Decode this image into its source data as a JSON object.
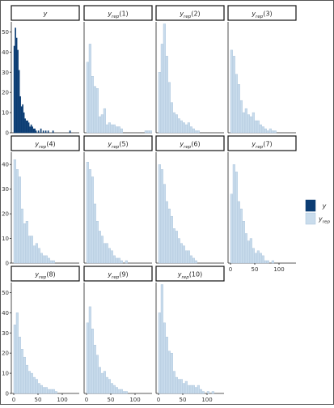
{
  "chart_data": {
    "type": "histogram-grid",
    "title": "",
    "xlabel": "",
    "ylabel": "",
    "colors": {
      "observed": "#0b3c73",
      "replicate": "#c9dcec",
      "replicate_edge": "#a7c1d9"
    },
    "legend": {
      "placement": "right",
      "entries": [
        {
          "key": "y",
          "label": "y",
          "sub": ""
        },
        {
          "key": "yrep",
          "label": "y",
          "sub": "rep"
        }
      ]
    },
    "bin_width": 5,
    "rows": [
      {
        "xlim": [
          -5,
          135
        ],
        "xticks": [],
        "ylim": [
          0,
          55
        ],
        "yticks": [
          "0",
          "10",
          "20",
          "30",
          "40",
          "50"
        ]
      },
      {
        "xlim": [
          -5,
          135
        ],
        "xticks": [],
        "ylim": [
          0,
          45
        ],
        "yticks": [
          "0",
          "10",
          "20",
          "30",
          "40"
        ]
      },
      {
        "xlim": [
          -5,
          135
        ],
        "xticks": [
          "0",
          "50",
          "100"
        ],
        "ylim": [
          0,
          55
        ],
        "yticks": [
          "0",
          "10",
          "20",
          "30",
          "40",
          "50"
        ]
      }
    ],
    "panels": [
      {
        "label": "y",
        "sub": "",
        "idx": "",
        "kind": "observed",
        "row": 0,
        "col": 0,
        "bin_starts": [
          0,
          2.5,
          5,
          7.5,
          10,
          12.5,
          15,
          17.5,
          20,
          22.5,
          25,
          27.5,
          30,
          32.5,
          35,
          37.5,
          40,
          42.5,
          45,
          50,
          55,
          60,
          65,
          70,
          80,
          115
        ],
        "values": [
          43,
          52,
          47,
          41,
          31,
          18,
          13,
          14,
          10,
          7,
          6,
          6,
          5,
          3,
          4,
          3,
          2,
          2,
          1,
          1,
          2,
          1,
          1,
          1,
          1,
          1
        ]
      },
      {
        "label": "y",
        "sub": "rep",
        "idx": "(1)",
        "kind": "replicate",
        "row": 0,
        "col": 1,
        "values": [
          35,
          44,
          28,
          23,
          22,
          8,
          9,
          12,
          4,
          5,
          4,
          4,
          3,
          3,
          2,
          0,
          0,
          0,
          0,
          0,
          0,
          0,
          0,
          0,
          1,
          1,
          1
        ]
      },
      {
        "label": "y",
        "sub": "rep",
        "idx": "(2)",
        "kind": "replicate",
        "row": 0,
        "col": 2,
        "values": [
          30,
          44,
          54,
          38,
          25,
          15,
          10,
          9,
          7,
          6,
          5,
          4,
          5,
          3,
          2,
          1,
          1,
          0,
          0,
          0,
          0,
          0,
          0,
          0,
          0,
          0,
          0
        ]
      },
      {
        "label": "y",
        "sub": "rep",
        "idx": "(3)",
        "kind": "replicate",
        "row": 0,
        "col": 3,
        "values": [
          41,
          38,
          29,
          24,
          16,
          10,
          12,
          9,
          8,
          10,
          6,
          6,
          4,
          3,
          2,
          1,
          2,
          1,
          1,
          0,
          0,
          0,
          0,
          0,
          0,
          0,
          0
        ]
      },
      {
        "label": "y",
        "sub": "rep",
        "idx": "(4)",
        "kind": "replicate",
        "row": 1,
        "col": 0,
        "values": [
          42,
          38,
          35,
          22,
          16,
          17,
          11,
          11,
          7,
          8,
          6,
          4,
          3,
          3,
          2,
          1,
          1,
          0,
          0,
          0,
          0,
          0,
          0,
          0,
          0,
          0,
          0
        ]
      },
      {
        "label": "y",
        "sub": "rep",
        "idx": "(5)",
        "kind": "replicate",
        "row": 1,
        "col": 1,
        "values": [
          41,
          38,
          35,
          24,
          17,
          13,
          11,
          8,
          8,
          6,
          5,
          3,
          2,
          2,
          1,
          0,
          1,
          0,
          0,
          0,
          0,
          0,
          0,
          0,
          0,
          0,
          0
        ]
      },
      {
        "label": "y",
        "sub": "rep",
        "idx": "(6)",
        "kind": "replicate",
        "row": 1,
        "col": 2,
        "values": [
          40,
          38,
          32,
          25,
          22,
          19,
          14,
          13,
          10,
          8,
          7,
          5,
          5,
          3,
          2,
          1,
          0,
          0,
          0,
          0,
          0,
          0,
          0,
          0,
          0,
          0,
          0
        ]
      },
      {
        "label": "y",
        "sub": "rep",
        "idx": "(7)",
        "kind": "replicate",
        "row": 1,
        "col": 3,
        "values": [
          28,
          40,
          37,
          25,
          22,
          17,
          12,
          9,
          10,
          6,
          4,
          5,
          4,
          3,
          1,
          1,
          0,
          1,
          0,
          0,
          0,
          0,
          0,
          0,
          0,
          0,
          0
        ]
      },
      {
        "label": "y",
        "sub": "rep",
        "idx": "(8)",
        "kind": "replicate",
        "row": 2,
        "col": 0,
        "values": [
          34,
          40,
          28,
          22,
          18,
          14,
          11,
          10,
          8,
          7,
          5,
          4,
          3,
          3,
          2,
          2,
          2,
          1,
          0,
          0,
          0,
          0,
          0,
          0,
          0,
          0,
          0
        ]
      },
      {
        "label": "y",
        "sub": "rep",
        "idx": "(9)",
        "kind": "replicate",
        "row": 2,
        "col": 1,
        "values": [
          35,
          43,
          32,
          24,
          19,
          13,
          10,
          11,
          8,
          7,
          5,
          4,
          3,
          2,
          2,
          1,
          1,
          0,
          0,
          0,
          0,
          0,
          0,
          0,
          0,
          0,
          0
        ]
      },
      {
        "label": "y",
        "sub": "rep",
        "idx": "(10)",
        "kind": "replicate",
        "row": 2,
        "col": 2,
        "values": [
          40,
          54,
          35,
          28,
          21,
          20,
          11,
          8,
          7,
          7,
          5,
          6,
          4,
          4,
          4,
          3,
          4,
          2,
          1,
          0,
          1,
          0,
          1,
          0,
          0,
          0,
          0
        ]
      }
    ]
  }
}
